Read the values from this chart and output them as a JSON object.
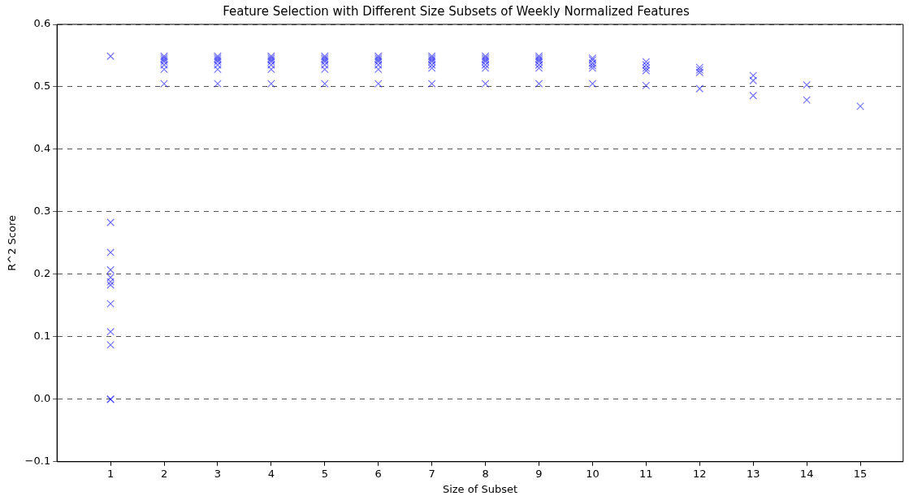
{
  "chart_data": {
    "type": "scatter",
    "title": "Feature Selection with Different Size Subsets of Weekly Normalized Features",
    "xlabel": "Size of Subset",
    "ylabel": "R^2 Score",
    "xlim": [
      0,
      15.8
    ],
    "xticks": [
      1,
      2,
      3,
      4,
      5,
      6,
      7,
      8,
      9,
      10,
      11,
      12,
      13,
      14,
      15
    ],
    "ylim": [
      -0.1,
      0.6
    ],
    "yticks": [
      {
        "value": -0.1,
        "label": "−0.1"
      },
      {
        "value": 0,
        "label": "0.0"
      },
      {
        "value": 0.1,
        "label": "0.1"
      },
      {
        "value": 0.2,
        "label": "0.2"
      },
      {
        "value": 0.3,
        "label": "0.3"
      },
      {
        "value": 0.4,
        "label": "0.4"
      },
      {
        "value": 0.5,
        "label": "0.5"
      },
      {
        "value": 0.6,
        "label": "0.6"
      }
    ],
    "grid": "y",
    "marker": "cross",
    "series": [
      {
        "color": "#0000ff",
        "x": [
          1,
          1,
          1,
          1,
          1,
          1,
          1,
          1,
          1,
          1,
          1,
          1,
          2,
          2,
          2,
          2,
          2,
          2,
          2,
          3,
          3,
          3,
          3,
          3,
          3,
          3,
          4,
          4,
          4,
          4,
          4,
          4,
          4,
          5,
          5,
          5,
          5,
          5,
          5,
          5,
          6,
          6,
          6,
          6,
          6,
          6,
          6,
          7,
          7,
          7,
          7,
          7,
          7,
          7,
          8,
          8,
          8,
          8,
          8,
          8,
          8,
          9,
          9,
          9,
          9,
          9,
          9,
          9,
          10,
          10,
          10,
          10,
          10,
          10,
          11,
          11,
          11,
          11,
          11,
          12,
          12,
          12,
          12,
          13,
          13,
          13,
          14,
          14,
          15
        ],
        "values": [
          0.549,
          0.283,
          0.235,
          0.207,
          0.195,
          0.188,
          0.183,
          0.153,
          0.108,
          0.087,
          0,
          0,
          0.549,
          0.546,
          0.543,
          0.54,
          0.535,
          0.528,
          0.505,
          0.549,
          0.546,
          0.543,
          0.54,
          0.535,
          0.528,
          0.505,
          0.549,
          0.546,
          0.543,
          0.54,
          0.535,
          0.528,
          0.505,
          0.549,
          0.546,
          0.543,
          0.54,
          0.535,
          0.528,
          0.505,
          0.549,
          0.546,
          0.543,
          0.54,
          0.535,
          0.528,
          0.505,
          0.549,
          0.546,
          0.543,
          0.54,
          0.535,
          0.53,
          0.505,
          0.549,
          0.546,
          0.543,
          0.54,
          0.535,
          0.53,
          0.505,
          0.549,
          0.546,
          0.543,
          0.54,
          0.535,
          0.53,
          0.505,
          0.546,
          0.543,
          0.538,
          0.534,
          0.53,
          0.505,
          0.54,
          0.535,
          0.53,
          0.526,
          0.502,
          0.531,
          0.527,
          0.523,
          0.497,
          0.518,
          0.51,
          0.486,
          0.503,
          0.479,
          0.469
        ]
      }
    ]
  }
}
